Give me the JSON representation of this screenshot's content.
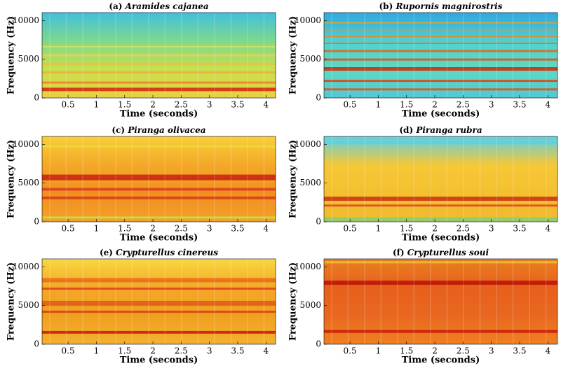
{
  "chart_data": [
    {
      "type": "spectrogram",
      "panel": "(a)",
      "title": "Aramides cajanea",
      "xlabel": "Time (seconds)",
      "ylabel": "Frequency (Hz)",
      "xlim": [
        0.04,
        4.17
      ],
      "ylim": [
        0,
        11025
      ],
      "xticks": [
        0.5,
        1,
        1.5,
        2,
        2.5,
        3,
        3.5,
        4
      ],
      "yticks": [
        0,
        5000,
        10000
      ]
    },
    {
      "type": "spectrogram",
      "panel": "(b)",
      "title": "Rupornis magnirostris",
      "xlabel": "Time (seconds)",
      "ylabel": "Frequency (Hz)",
      "xlim": [
        0.04,
        4.17
      ],
      "ylim": [
        0,
        11025
      ],
      "xticks": [
        0.5,
        1,
        1.5,
        2,
        2.5,
        3,
        3.5,
        4
      ],
      "yticks": [
        0,
        5000,
        10000
      ]
    },
    {
      "type": "spectrogram",
      "panel": "(c)",
      "title": "Piranga olivacea",
      "xlabel": "Time (seconds)",
      "ylabel": "Frequency (Hz)",
      "xlim": [
        0.04,
        4.17
      ],
      "ylim": [
        0,
        11025
      ],
      "xticks": [
        0.5,
        1,
        1.5,
        2,
        2.5,
        3,
        3.5,
        4
      ],
      "yticks": [
        0,
        5000,
        10000
      ]
    },
    {
      "type": "spectrogram",
      "panel": "(d)",
      "title": "Piranga rubra",
      "xlabel": "Time (seconds)",
      "ylabel": "Frequency (Hz)",
      "xlim": [
        0.04,
        4.17
      ],
      "ylim": [
        0,
        11025
      ],
      "xticks": [
        0.5,
        1,
        1.5,
        2,
        2.5,
        3,
        3.5,
        4
      ],
      "yticks": [
        0,
        5000,
        10000
      ]
    },
    {
      "type": "spectrogram",
      "panel": "(e)",
      "title": "Crypturellus cinereus",
      "xlabel": "Time (seconds)",
      "ylabel": "Frequency (Hz)",
      "xlim": [
        0.04,
        4.17
      ],
      "ylim": [
        0,
        11025
      ],
      "xticks": [
        0.5,
        1,
        1.5,
        2,
        2.5,
        3,
        3.5,
        4
      ],
      "yticks": [
        0,
        5000,
        10000
      ]
    },
    {
      "type": "spectrogram",
      "panel": "(f)",
      "title": "Crypturellus soui",
      "xlabel": "Time (seconds)",
      "ylabel": "Frequency (Hz)",
      "xlim": [
        0.04,
        4.17
      ],
      "ylim": [
        0,
        11025
      ],
      "xticks": [
        0.5,
        1,
        1.5,
        2,
        2.5,
        3,
        3.5,
        4
      ],
      "yticks": [
        0,
        5000,
        10000
      ]
    }
  ]
}
